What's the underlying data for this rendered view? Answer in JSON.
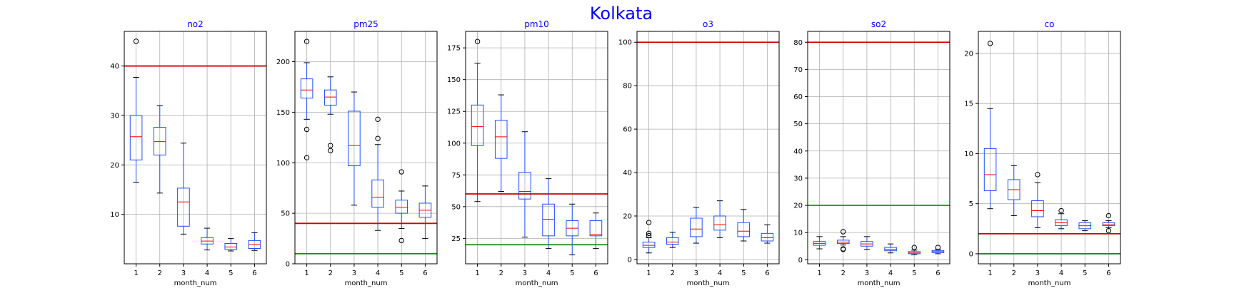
{
  "figure": {
    "title": "Kolkata"
  },
  "colors": {
    "box": "#1f4fff",
    "median": "#ff0000",
    "whisker": "#000000",
    "flier": "#000000",
    "grid": "#b0b0b0",
    "title": "#0000ff",
    "limit_high": "#d00000",
    "limit_low": "#159015"
  },
  "chart_data": [
    {
      "type": "box",
      "title": "no2",
      "xlabel": "month_num",
      "categories": [
        "1",
        "2",
        "3",
        "4",
        "5",
        "6"
      ],
      "ylim": [
        0,
        47
      ],
      "yticks": [
        10,
        20,
        30,
        40
      ],
      "grid": true,
      "hlines": [
        {
          "y": 40,
          "color": "red"
        }
      ],
      "boxes": [
        {
          "min": 16.5,
          "q1": 21,
          "median": 25.7,
          "q3": 30,
          "max": 37.7,
          "fliers": [
            45
          ]
        },
        {
          "min": 14.3,
          "q1": 22,
          "median": 24.7,
          "q3": 27.6,
          "max": 32,
          "fliers": []
        },
        {
          "min": 6,
          "q1": 7.6,
          "median": 12.5,
          "q3": 15.3,
          "max": 24.4,
          "fliers": []
        },
        {
          "min": 2.8,
          "q1": 4,
          "median": 4.6,
          "q3": 5.3,
          "max": 7.2,
          "fliers": []
        },
        {
          "min": 2.6,
          "q1": 2.9,
          "median": 3.4,
          "q3": 4.1,
          "max": 5.1,
          "fliers": []
        },
        {
          "min": 2.7,
          "q1": 3.1,
          "median": 3.9,
          "q3": 4.7,
          "max": 6.3,
          "fliers": []
        }
      ]
    },
    {
      "type": "box",
      "title": "pm25",
      "xlabel": "month_num",
      "categories": [
        "1",
        "2",
        "3",
        "4",
        "5",
        "6"
      ],
      "ylim": [
        0,
        230
      ],
      "yticks": [
        0,
        50,
        100,
        150,
        200
      ],
      "grid": true,
      "hlines": [
        {
          "y": 40,
          "color": "red"
        },
        {
          "y": 10,
          "color": "green"
        }
      ],
      "boxes": [
        {
          "min": 143,
          "q1": 164,
          "median": 172,
          "q3": 183,
          "max": 199,
          "fliers": [
            133,
            105,
            220
          ]
        },
        {
          "min": 148,
          "q1": 157,
          "median": 165,
          "q3": 172,
          "max": 185,
          "fliers": [
            117,
            112
          ]
        },
        {
          "min": 58,
          "q1": 97,
          "median": 117,
          "q3": 151,
          "max": 170,
          "fliers": []
        },
        {
          "min": 33,
          "q1": 56,
          "median": 66,
          "q3": 83,
          "max": 118,
          "fliers": [
            143,
            124
          ]
        },
        {
          "min": 35,
          "q1": 50,
          "median": 56,
          "q3": 63,
          "max": 72,
          "fliers": [
            91,
            23
          ]
        },
        {
          "min": 25,
          "q1": 46,
          "median": 53,
          "q3": 60,
          "max": 77,
          "fliers": []
        }
      ]
    },
    {
      "type": "box",
      "title": "pm10",
      "xlabel": "month_num",
      "categories": [
        "1",
        "2",
        "3",
        "4",
        "5",
        "6"
      ],
      "ylim": [
        5,
        188
      ],
      "yticks": [
        25,
        50,
        75,
        100,
        125,
        150,
        175
      ],
      "grid": true,
      "hlines": [
        {
          "y": 60,
          "color": "red"
        },
        {
          "y": 20,
          "color": "green"
        }
      ],
      "boxes": [
        {
          "min": 54,
          "q1": 98,
          "median": 113,
          "q3": 130,
          "max": 163,
          "fliers": [
            180
          ]
        },
        {
          "min": 62,
          "q1": 88,
          "median": 105,
          "q3": 118,
          "max": 138,
          "fliers": []
        },
        {
          "min": 26,
          "q1": 56,
          "median": 62,
          "q3": 77,
          "max": 109,
          "fliers": []
        },
        {
          "min": 17,
          "q1": 27,
          "median": 40,
          "q3": 52,
          "max": 72,
          "fliers": []
        },
        {
          "min": 12,
          "q1": 27,
          "median": 33,
          "q3": 39,
          "max": 52,
          "fliers": []
        },
        {
          "min": 17,
          "q1": 27,
          "median": 28,
          "q3": 39,
          "max": 45,
          "fliers": []
        }
      ]
    },
    {
      "type": "box",
      "title": "o3",
      "xlabel": "month_num",
      "categories": [
        "1",
        "2",
        "3",
        "4",
        "5",
        "6"
      ],
      "ylim": [
        -2,
        105
      ],
      "yticks": [
        0,
        20,
        40,
        60,
        80,
        100
      ],
      "grid": true,
      "hlines": [
        {
          "y": 100,
          "color": "red"
        }
      ],
      "boxes": [
        {
          "min": 3,
          "q1": 5.5,
          "median": 6.5,
          "q3": 8,
          "max": 10,
          "fliers": [
            11,
            12,
            17
          ]
        },
        {
          "min": 5.5,
          "q1": 7,
          "median": 8,
          "q3": 10,
          "max": 12.5,
          "fliers": []
        },
        {
          "min": 7.5,
          "q1": 10.5,
          "median": 14,
          "q3": 19,
          "max": 24,
          "fliers": []
        },
        {
          "min": 10,
          "q1": 13.5,
          "median": 16,
          "q3": 20,
          "max": 27,
          "fliers": []
        },
        {
          "min": 8.5,
          "q1": 10.5,
          "median": 13,
          "q3": 17,
          "max": 23,
          "fliers": []
        },
        {
          "min": 7.5,
          "q1": 8.5,
          "median": 10,
          "q3": 12,
          "max": 16,
          "fliers": []
        }
      ]
    },
    {
      "type": "box",
      "title": "so2",
      "xlabel": "month_num",
      "categories": [
        "1",
        "2",
        "3",
        "4",
        "5",
        "6"
      ],
      "ylim": [
        -1.5,
        84
      ],
      "yticks": [
        0,
        10,
        20,
        30,
        40,
        50,
        60,
        70,
        80
      ],
      "grid": true,
      "hlines": [
        {
          "y": 80,
          "color": "red"
        },
        {
          "y": 20,
          "color": "green"
        }
      ],
      "boxes": [
        {
          "min": 4,
          "q1": 5.3,
          "median": 6,
          "q3": 6.7,
          "max": 8.5,
          "fliers": []
        },
        {
          "min": 5.4,
          "q1": 6,
          "median": 6.5,
          "q3": 7.2,
          "max": 8.5,
          "fliers": [
            10.3,
            4,
            3.8
          ]
        },
        {
          "min": 3.8,
          "q1": 5,
          "median": 5.8,
          "q3": 6.7,
          "max": 8.5,
          "fliers": []
        },
        {
          "min": 2.5,
          "q1": 3.3,
          "median": 3.8,
          "q3": 4.5,
          "max": 5.8,
          "fliers": []
        },
        {
          "min": 1.8,
          "q1": 2.2,
          "median": 2.5,
          "q3": 3,
          "max": 3.5,
          "fliers": [
            4.5
          ]
        },
        {
          "min": 2.2,
          "q1": 2.6,
          "median": 3,
          "q3": 3.4,
          "max": 3.8,
          "fliers": [
            4.5
          ]
        }
      ]
    },
    {
      "type": "box",
      "title": "co",
      "xlabel": "month_num",
      "categories": [
        "1",
        "2",
        "3",
        "4",
        "5",
        "6"
      ],
      "ylim": [
        -1,
        22.2
      ],
      "yticks": [
        0,
        5,
        10,
        15,
        20
      ],
      "grid": true,
      "hlines": [
        {
          "y": 2,
          "color": "red"
        },
        {
          "y": 0,
          "color": "green"
        }
      ],
      "boxes": [
        {
          "min": 4.5,
          "q1": 6.3,
          "median": 7.9,
          "q3": 10.5,
          "max": 14.5,
          "fliers": [
            21
          ]
        },
        {
          "min": 3.8,
          "q1": 5.4,
          "median": 6.4,
          "q3": 7.4,
          "max": 8.8,
          "fliers": []
        },
        {
          "min": 2.6,
          "q1": 3.7,
          "median": 4.3,
          "q3": 5.3,
          "max": 7.1,
          "fliers": [
            7.9
          ]
        },
        {
          "min": 2.5,
          "q1": 2.8,
          "median": 3.1,
          "q3": 3.4,
          "max": 4,
          "fliers": [
            4.3
          ]
        },
        {
          "min": 2.3,
          "q1": 2.5,
          "median": 2.8,
          "q3": 3.1,
          "max": 3.3,
          "fliers": []
        },
        {
          "min": 2.6,
          "q1": 2.8,
          "median": 2.9,
          "q3": 3.1,
          "max": 3.3,
          "fliers": [
            3.8,
            2.3
          ]
        }
      ]
    }
  ]
}
